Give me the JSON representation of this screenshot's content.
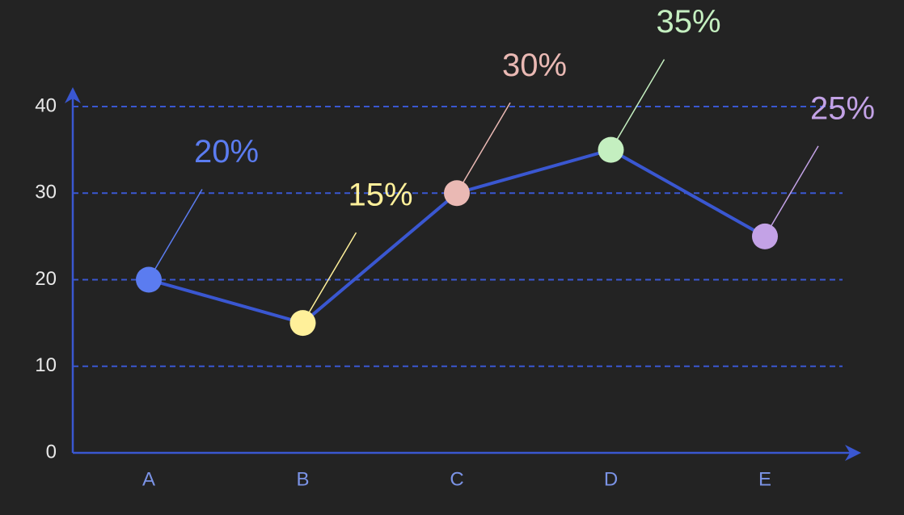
{
  "chart_data": {
    "type": "line",
    "categories": [
      "A",
      "B",
      "C",
      "D",
      "E"
    ],
    "values": [
      20,
      15,
      30,
      35,
      25
    ],
    "value_labels": [
      "20%",
      "15%",
      "30%",
      "35%",
      "25%"
    ],
    "color": "#3a57d1",
    "point_colors": [
      "#5b7cf0",
      "#fff09a",
      "#eab9b4",
      "#c4efc0",
      "#c3a2e6"
    ],
    "ylim": [
      0,
      40
    ],
    "yticks": [
      0,
      10,
      20,
      30,
      40
    ],
    "grid": true
  }
}
